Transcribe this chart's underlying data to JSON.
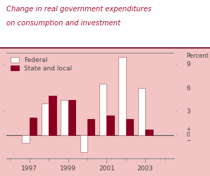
{
  "years": [
    1997,
    1998,
    1999,
    2000,
    2001,
    2002,
    2003
  ],
  "federal": [
    -1.0,
    4.0,
    4.5,
    -2.2,
    6.5,
    10.0,
    6.0
  ],
  "state_local": [
    2.2,
    5.0,
    4.5,
    2.0,
    2.5,
    2.0,
    0.7
  ],
  "federal_color": "#ffffff",
  "federal_edge_color": "#c08080",
  "state_local_color": "#8b0020",
  "bg_chart": "#f2c4c4",
  "bg_title": "#ffffff",
  "title_line1": "Change in real government expenditures",
  "title_line2": "on consumption and investment",
  "ylabel": "Percent",
  "yticks": [
    0,
    3,
    6,
    9
  ],
  "ylim": [
    -3.0,
    10.5
  ],
  "xlim": [
    1995.8,
    2004.5
  ],
  "xticks": [
    1997,
    1999,
    2001,
    2003
  ],
  "bar_width": 0.38,
  "title_color": "#aa1133",
  "tick_label_color": "#444444",
  "line_color": "#888888",
  "zero_line_color": "#555555"
}
